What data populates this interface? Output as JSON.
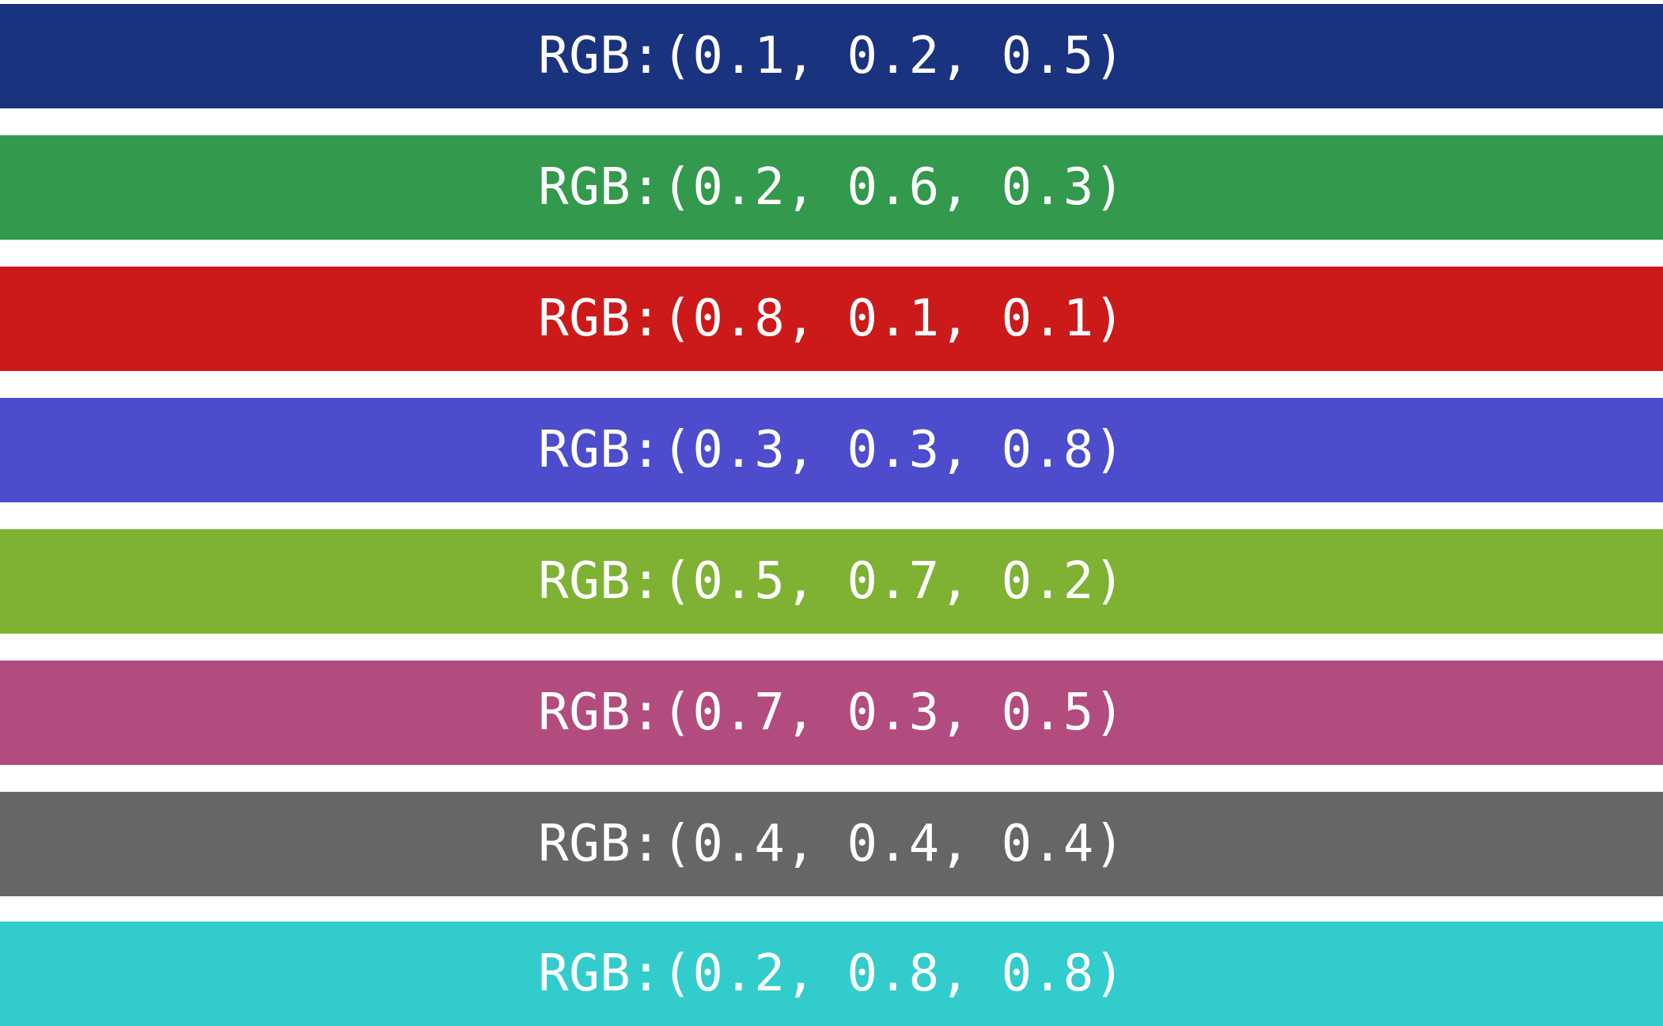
{
  "swatches": [
    {
      "label": "RGB:(0.1, 0.2, 0.5)",
      "color": "#1a337f"
    },
    {
      "label": "RGB:(0.2, 0.6, 0.3)",
      "color": "#33994c"
    },
    {
      "label": "RGB:(0.8, 0.1, 0.1)",
      "color": "#cc1a1a"
    },
    {
      "label": "RGB:(0.3, 0.3, 0.8)",
      "color": "#4c4ccc"
    },
    {
      "label": "RGB:(0.5, 0.7, 0.2)",
      "color": "#7fb233"
    },
    {
      "label": "RGB:(0.7, 0.3, 0.5)",
      "color": "#b24c7f"
    },
    {
      "label": "RGB:(0.4, 0.4, 0.4)",
      "color": "#666666"
    },
    {
      "label": "RGB:(0.2, 0.8, 0.8)",
      "color": "#33cccc"
    }
  ]
}
